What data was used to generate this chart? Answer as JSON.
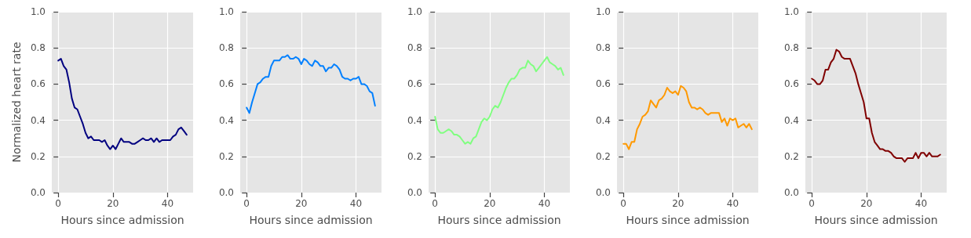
{
  "chart_data": [
    {
      "type": "line",
      "xlabel": "Hours since admission",
      "ylabel": "Normalized heart rate",
      "grid": true,
      "x": [
        0,
        1,
        2,
        3,
        4,
        5,
        6,
        7,
        8,
        9,
        10,
        11,
        12,
        13,
        14,
        15,
        16,
        17,
        18,
        19,
        20,
        21,
        22,
        23,
        24,
        25,
        26,
        27,
        28,
        29,
        30,
        31,
        32,
        33,
        34,
        35,
        36,
        37,
        38,
        39,
        40,
        41,
        42,
        43,
        44,
        45,
        46,
        47
      ],
      "series": [
        {
          "color": "#000080",
          "values": [
            0.73,
            0.74,
            0.7,
            0.68,
            0.61,
            0.52,
            0.47,
            0.46,
            0.42,
            0.38,
            0.33,
            0.3,
            0.31,
            0.29,
            0.29,
            0.29,
            0.28,
            0.29,
            0.26,
            0.24,
            0.26,
            0.24,
            0.27,
            0.3,
            0.28,
            0.28,
            0.28,
            0.27,
            0.27,
            0.28,
            0.29,
            0.3,
            0.29,
            0.29,
            0.3,
            0.28,
            0.3,
            0.28,
            0.29,
            0.29,
            0.29,
            0.29,
            0.31,
            0.32,
            0.35,
            0.36,
            0.34,
            0.32
          ]
        }
      ],
      "xlim": [
        -2.35,
        49.35
      ],
      "xticks": [
        0,
        20,
        40
      ],
      "ylim": [
        0,
        1
      ],
      "yticks": [
        {
          "value": 0,
          "label": "0.0"
        },
        {
          "value": 0.2,
          "label": "0.2"
        },
        {
          "value": 0.4,
          "label": "0.4"
        },
        {
          "value": 0.6,
          "label": "0.6"
        },
        {
          "value": 0.8,
          "label": "0.8"
        },
        {
          "value": 1,
          "label": "1.0"
        }
      ]
    },
    {
      "type": "line",
      "xlabel": "Hours since admission",
      "grid": true,
      "x": [
        0,
        1,
        2,
        3,
        4,
        5,
        6,
        7,
        8,
        9,
        10,
        11,
        12,
        13,
        14,
        15,
        16,
        17,
        18,
        19,
        20,
        21,
        22,
        23,
        24,
        25,
        26,
        27,
        28,
        29,
        30,
        31,
        32,
        33,
        34,
        35,
        36,
        37,
        38,
        39,
        40,
        41,
        42,
        43,
        44,
        45,
        46,
        47
      ],
      "series": [
        {
          "color": "#0080ff",
          "values": [
            0.47,
            0.44,
            0.5,
            0.55,
            0.6,
            0.61,
            0.63,
            0.64,
            0.64,
            0.7,
            0.73,
            0.73,
            0.73,
            0.75,
            0.75,
            0.76,
            0.74,
            0.74,
            0.75,
            0.74,
            0.71,
            0.74,
            0.73,
            0.71,
            0.7,
            0.73,
            0.72,
            0.7,
            0.7,
            0.67,
            0.69,
            0.69,
            0.71,
            0.7,
            0.68,
            0.64,
            0.63,
            0.63,
            0.62,
            0.63,
            0.63,
            0.64,
            0.6,
            0.6,
            0.59,
            0.56,
            0.55,
            0.48
          ]
        }
      ],
      "xlim": [
        -2.35,
        49.35
      ],
      "xticks": [
        0,
        20,
        40
      ],
      "ylim": [
        0,
        1
      ],
      "yticks": [
        {
          "value": 0,
          "label": "0.0"
        },
        {
          "value": 0.2,
          "label": "0.2"
        },
        {
          "value": 0.4,
          "label": "0.4"
        },
        {
          "value": 0.6,
          "label": "0.6"
        },
        {
          "value": 0.8,
          "label": "0.8"
        },
        {
          "value": 1,
          "label": "1.0"
        }
      ]
    },
    {
      "type": "line",
      "xlabel": "Hours since admission",
      "grid": true,
      "x": [
        0,
        1,
        2,
        3,
        4,
        5,
        6,
        7,
        8,
        9,
        10,
        11,
        12,
        13,
        14,
        15,
        16,
        17,
        18,
        19,
        20,
        21,
        22,
        23,
        24,
        25,
        26,
        27,
        28,
        29,
        30,
        31,
        32,
        33,
        34,
        35,
        36,
        37,
        38,
        39,
        40,
        41,
        42,
        43,
        44,
        45,
        46,
        47
      ],
      "series": [
        {
          "color": "#80ff80",
          "values": [
            0.42,
            0.35,
            0.33,
            0.33,
            0.34,
            0.35,
            0.34,
            0.32,
            0.32,
            0.31,
            0.29,
            0.27,
            0.28,
            0.27,
            0.3,
            0.31,
            0.35,
            0.39,
            0.41,
            0.4,
            0.42,
            0.46,
            0.48,
            0.47,
            0.5,
            0.54,
            0.58,
            0.61,
            0.63,
            0.63,
            0.65,
            0.68,
            0.69,
            0.69,
            0.73,
            0.71,
            0.7,
            0.67,
            0.69,
            0.71,
            0.73,
            0.75,
            0.72,
            0.71,
            0.7,
            0.68,
            0.69,
            0.65
          ]
        }
      ],
      "xlim": [
        -2.35,
        49.35
      ],
      "xticks": [
        0,
        20,
        40
      ],
      "ylim": [
        0,
        1
      ],
      "yticks": [
        {
          "value": 0,
          "label": "0.0"
        },
        {
          "value": 0.2,
          "label": "0.2"
        },
        {
          "value": 0.4,
          "label": "0.4"
        },
        {
          "value": 0.6,
          "label": "0.6"
        },
        {
          "value": 0.8,
          "label": "0.8"
        },
        {
          "value": 1,
          "label": "1.0"
        }
      ]
    },
    {
      "type": "line",
      "xlabel": "Hours since admission",
      "grid": true,
      "x": [
        0,
        1,
        2,
        3,
        4,
        5,
        6,
        7,
        8,
        9,
        10,
        11,
        12,
        13,
        14,
        15,
        16,
        17,
        18,
        19,
        20,
        21,
        22,
        23,
        24,
        25,
        26,
        27,
        28,
        29,
        30,
        31,
        32,
        33,
        34,
        35,
        36,
        37,
        38,
        39,
        40,
        41,
        42,
        43,
        44,
        45,
        46,
        47
      ],
      "series": [
        {
          "color": "#ff9900",
          "values": [
            0.27,
            0.27,
            0.24,
            0.28,
            0.28,
            0.35,
            0.38,
            0.42,
            0.43,
            0.45,
            0.51,
            0.49,
            0.47,
            0.51,
            0.52,
            0.54,
            0.58,
            0.56,
            0.55,
            0.56,
            0.54,
            0.59,
            0.58,
            0.56,
            0.5,
            0.47,
            0.47,
            0.46,
            0.47,
            0.46,
            0.44,
            0.43,
            0.44,
            0.44,
            0.44,
            0.44,
            0.39,
            0.41,
            0.37,
            0.41,
            0.4,
            0.41,
            0.36,
            0.37,
            0.38,
            0.36,
            0.38,
            0.35
          ]
        }
      ],
      "xlim": [
        -2.35,
        49.35
      ],
      "xticks": [
        0,
        20,
        40
      ],
      "ylim": [
        0,
        1
      ],
      "yticks": [
        {
          "value": 0,
          "label": "0.0"
        },
        {
          "value": 0.2,
          "label": "0.2"
        },
        {
          "value": 0.4,
          "label": "0.4"
        },
        {
          "value": 0.6,
          "label": "0.6"
        },
        {
          "value": 0.8,
          "label": "0.8"
        },
        {
          "value": 1,
          "label": "1.0"
        }
      ]
    },
    {
      "type": "line",
      "xlabel": "Hours since admission",
      "grid": true,
      "x": [
        0,
        1,
        2,
        3,
        4,
        5,
        6,
        7,
        8,
        9,
        10,
        11,
        12,
        13,
        14,
        15,
        16,
        17,
        18,
        19,
        20,
        21,
        22,
        23,
        24,
        25,
        26,
        27,
        28,
        29,
        30,
        31,
        32,
        33,
        34,
        35,
        36,
        37,
        38,
        39,
        40,
        41,
        42,
        43,
        44,
        45,
        46,
        47
      ],
      "series": [
        {
          "color": "#800000",
          "values": [
            0.63,
            0.62,
            0.6,
            0.6,
            0.62,
            0.68,
            0.68,
            0.72,
            0.74,
            0.79,
            0.78,
            0.75,
            0.74,
            0.74,
            0.74,
            0.7,
            0.66,
            0.6,
            0.55,
            0.5,
            0.41,
            0.41,
            0.33,
            0.28,
            0.26,
            0.24,
            0.24,
            0.23,
            0.23,
            0.22,
            0.2,
            0.19,
            0.19,
            0.19,
            0.17,
            0.19,
            0.19,
            0.19,
            0.22,
            0.19,
            0.22,
            0.22,
            0.2,
            0.22,
            0.2,
            0.2,
            0.2,
            0.21
          ]
        }
      ],
      "xlim": [
        -2.35,
        49.35
      ],
      "xticks": [
        0,
        20,
        40
      ],
      "ylim": [
        0,
        1
      ],
      "yticks": [
        {
          "value": 0,
          "label": "0.0"
        },
        {
          "value": 0.2,
          "label": "0.2"
        },
        {
          "value": 0.4,
          "label": "0.4"
        },
        {
          "value": 0.6,
          "label": "0.6"
        },
        {
          "value": 0.8,
          "label": "0.8"
        },
        {
          "value": 1,
          "label": "1.0"
        }
      ]
    }
  ]
}
